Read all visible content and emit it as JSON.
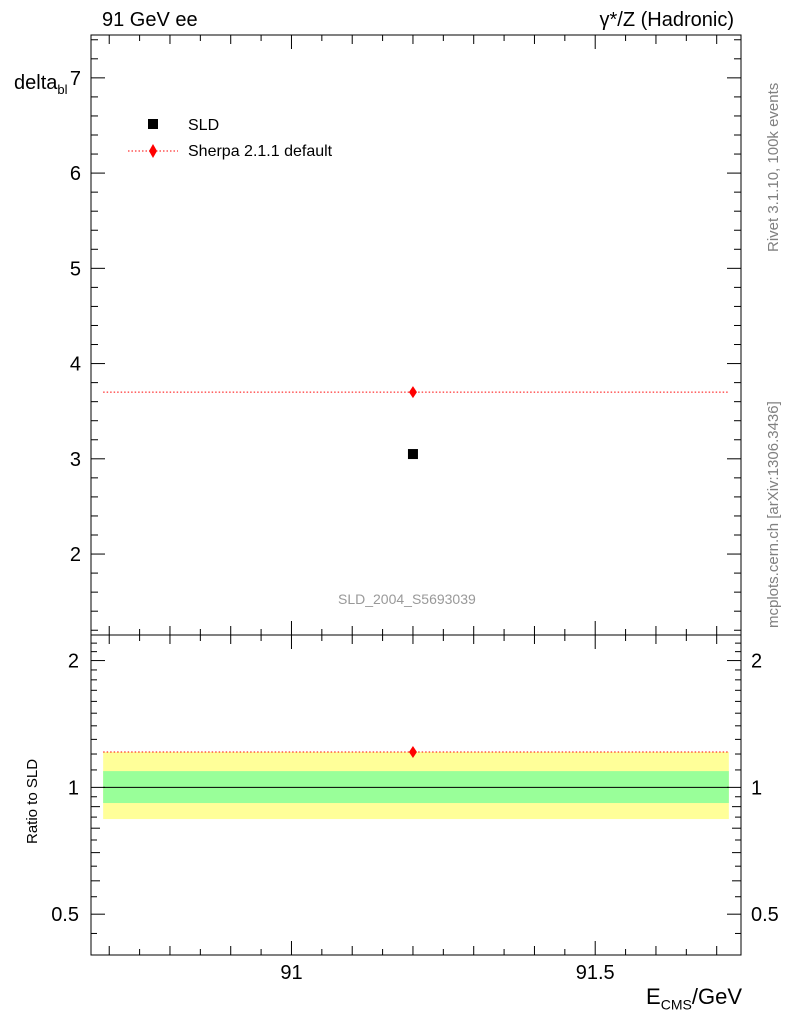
{
  "header": {
    "left_label": "91 GeV ee",
    "right_label": "γ*/Z (Hadronic)"
  },
  "side_text": {
    "rivet": "Rivet 3.1.10,  100k events",
    "mcplots": "mcplots.cern.ch [arXiv:1306.3436]"
  },
  "watermark": "SLD_2004_S5693039",
  "chart_data": [
    {
      "type": "scatter",
      "panel": "main",
      "ylabel": "delta",
      "ylabel_sub": "bl",
      "xlim": [
        90.67,
        91.74
      ],
      "ylim": [
        1.15,
        7.45
      ],
      "yticks": [
        2,
        3,
        4,
        5,
        6,
        7
      ],
      "ytick_labels": [
        "2",
        "3",
        "4",
        "5",
        "6",
        "7"
      ],
      "legend_position": "top-left",
      "series": [
        {
          "name": "SLD",
          "marker": "square",
          "color": "#000000",
          "x": [
            91.2
          ],
          "y": [
            3.05
          ]
        },
        {
          "name": "Sherpa 2.1.1 default",
          "marker": "diamond",
          "color": "#ff0000",
          "line": "dotted",
          "x": [
            91.2
          ],
          "y": [
            3.7
          ],
          "x_range": [
            90.69,
            91.72
          ]
        }
      ]
    },
    {
      "type": "scatter",
      "panel": "ratio",
      "ylabel": "Ratio to SLD",
      "xlabel": "E",
      "xlabel_sub": "CMS",
      "xlabel_unit": "/GeV",
      "xlim": [
        90.67,
        91.74
      ],
      "ylim": [
        0.4,
        2.3
      ],
      "log_y": true,
      "yticks": [
        0.5,
        1,
        2
      ],
      "ytick_labels": [
        "0.5",
        "1",
        "2"
      ],
      "xticks": [
        91,
        91.5
      ],
      "xtick_labels": [
        "91",
        "91.5"
      ],
      "bands": [
        {
          "name": "total uncertainty",
          "color": "#ffff99",
          "low": 0.841,
          "high": 1.213
        },
        {
          "name": "stat uncertainty",
          "color": "#99ff99",
          "low": 0.918,
          "high": 1.093
        }
      ],
      "reference_line": 1,
      "series": [
        {
          "name": "Sherpa 2.1.1 default",
          "marker": "diamond",
          "color": "#ff0000",
          "line": "dotted",
          "x": [
            91.2
          ],
          "y": [
            1.213
          ],
          "x_range": [
            90.69,
            91.72
          ]
        }
      ]
    }
  ]
}
